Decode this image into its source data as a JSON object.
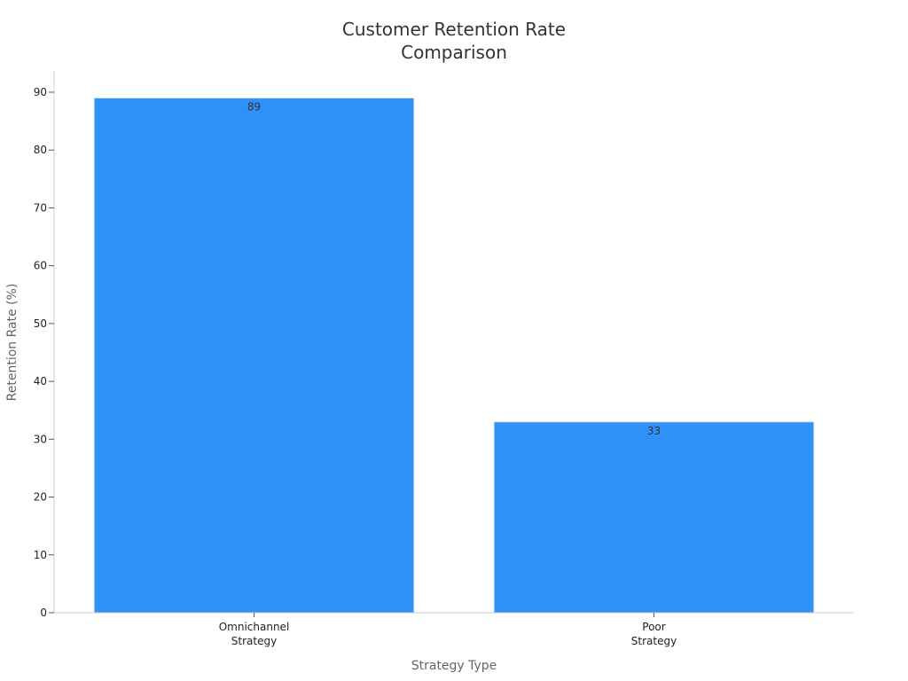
{
  "chart_data": {
    "type": "bar",
    "title_lines": [
      "Customer Retention Rate",
      "Comparison"
    ],
    "xlabel": "Strategy Type",
    "ylabel": "Retention Rate (%)",
    "categories": [
      [
        "Omnichannel",
        "Strategy"
      ],
      [
        "Poor",
        "Strategy"
      ]
    ],
    "values": [
      89,
      33
    ],
    "data_labels": [
      "89",
      "33"
    ],
    "ylim": [
      0,
      90
    ],
    "yticks": [
      0,
      10,
      20,
      30,
      40,
      50,
      60,
      70,
      80,
      90
    ],
    "grid": false,
    "legend": "none",
    "colors": {
      "bar": "#2f91f8",
      "bar_edge": "#d6e6f7",
      "axis": "#cccccc",
      "text": "#222222",
      "axis_title": "#666666"
    }
  }
}
